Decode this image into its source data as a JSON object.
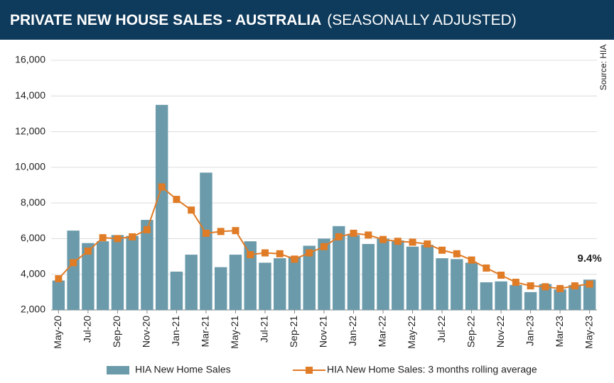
{
  "chart_data": {
    "type": "bar-line",
    "title": "PRIVATE NEW HOUSE SALES -  AUSTRALIA",
    "subtitle": "(SEASONALLY ADJUSTED)",
    "source": "Source: HIA",
    "annotation": "9.4%",
    "categories": [
      "May-20",
      null,
      "Jul-20",
      null,
      "Sep-20",
      null,
      "Nov-20",
      null,
      "Jan-21",
      null,
      "Mar-21",
      null,
      "May-21",
      null,
      "Jul-21",
      null,
      "Sep-21",
      null,
      "Nov-21",
      null,
      "Jan-22",
      null,
      "Mar-22",
      null,
      "May-22",
      null,
      "Jul-22",
      null,
      "Sep-22",
      null,
      "Nov-22",
      null,
      "Jan-23",
      null,
      "Mar-23",
      null,
      "May-23"
    ],
    "series": [
      {
        "name": "HIA New Home Sales",
        "type": "bar",
        "color": "#6b9bab",
        "values": [
          3650,
          6450,
          5750,
          5850,
          6200,
          6150,
          7050,
          13500,
          4150,
          5100,
          9700,
          4400,
          5100,
          5850,
          4650,
          4900,
          5000,
          5600,
          6000,
          6700,
          6200,
          5700,
          6000,
          5900,
          5550,
          5650,
          4900,
          4850,
          4650,
          3550,
          3600,
          3400,
          3000,
          3450,
          3150,
          3400,
          3700
        ]
      },
      {
        "name": "HIA New Home Sales: 3 months rolling average",
        "type": "line",
        "color": "#e07b26",
        "values": [
          3750,
          4650,
          5300,
          6050,
          6000,
          6100,
          6500,
          8900,
          8200,
          7600,
          6300,
          6400,
          6450,
          5100,
          5200,
          5150,
          4850,
          5200,
          5550,
          6100,
          6300,
          6200,
          5950,
          5850,
          5800,
          5700,
          5350,
          5150,
          4800,
          4350,
          3950,
          3550,
          3350,
          3300,
          3200,
          3350,
          3450
        ]
      }
    ],
    "ylim": [
      2000,
      16000
    ],
    "yticks": [
      {
        "value": 2000,
        "label": "2,000"
      },
      {
        "value": 4000,
        "label": "4,000"
      },
      {
        "value": 6000,
        "label": "6,000"
      },
      {
        "value": 8000,
        "label": "8,000"
      },
      {
        "value": 10000,
        "label": "10,000"
      },
      {
        "value": 12000,
        "label": "12,000"
      },
      {
        "value": 14000,
        "label": "14,000"
      },
      {
        "value": 16000,
        "label": "16,000"
      }
    ],
    "grid": true,
    "legend": "bottom"
  }
}
